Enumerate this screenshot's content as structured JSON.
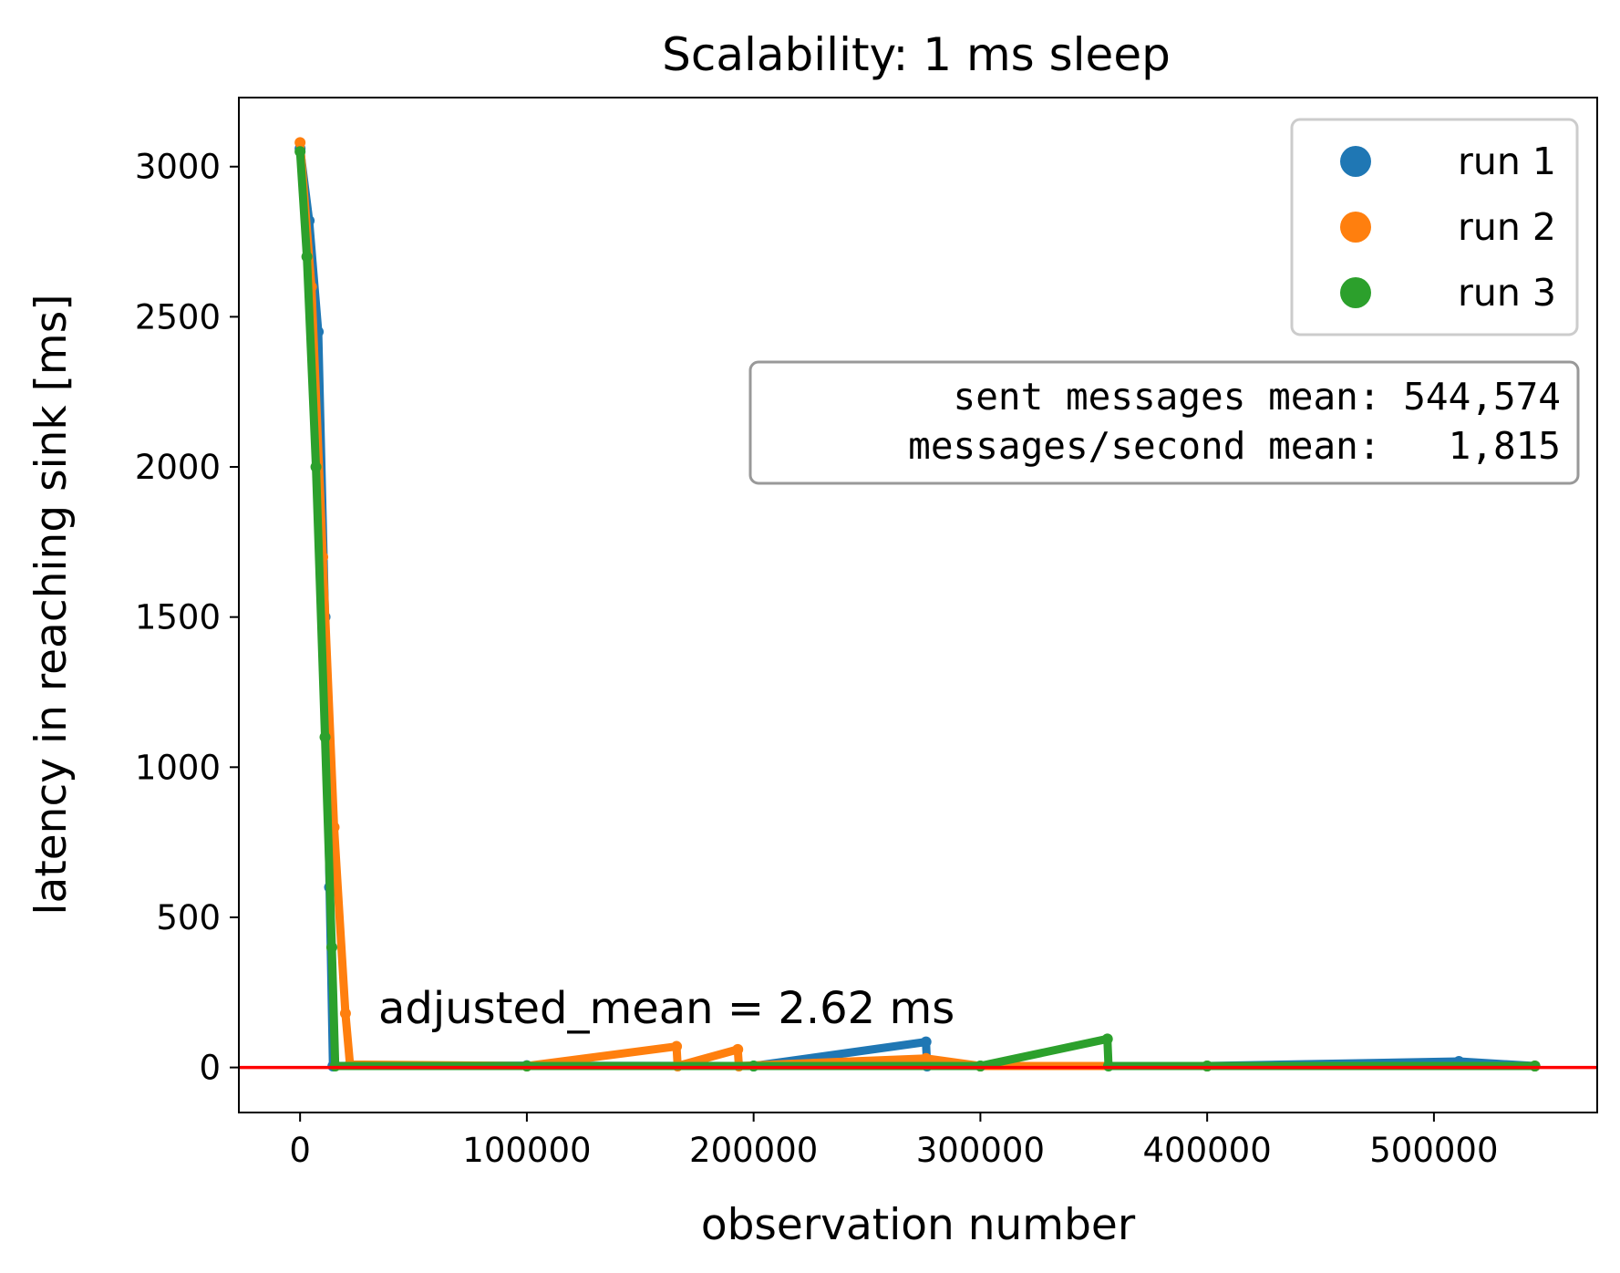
{
  "chart_data": {
    "type": "scatter",
    "title": "Scalability: 1 ms sleep",
    "xlabel": "observation number",
    "ylabel": "latency in reaching sink [ms]",
    "xlim": [
      -27000,
      572000
    ],
    "ylim": [
      -150,
      3230
    ],
    "x_ticks": [
      0,
      100000,
      200000,
      300000,
      400000,
      500000
    ],
    "x_tick_labels": [
      "0",
      "100000",
      "200000",
      "300000",
      "400000",
      "500000"
    ],
    "y_ticks": [
      0,
      500,
      1000,
      1500,
      2000,
      2500,
      3000
    ],
    "y_tick_labels": [
      "0",
      "500",
      "1000",
      "1500",
      "2000",
      "2500",
      "3000"
    ],
    "grid": false,
    "legend_position": "top-right",
    "series": [
      {
        "name": "run 1",
        "color": "#1f77b4",
        "points": [
          [
            0,
            3060
          ],
          [
            4000,
            2820
          ],
          [
            8000,
            2450
          ],
          [
            11000,
            1500
          ],
          [
            13000,
            600
          ],
          [
            14500,
            5
          ],
          [
            100000,
            6
          ],
          [
            200000,
            5
          ],
          [
            276000,
            85
          ],
          [
            276500,
            5
          ],
          [
            300000,
            5
          ],
          [
            400000,
            5
          ],
          [
            511000,
            20
          ],
          [
            544500,
            5
          ]
        ]
      },
      {
        "name": "run 2",
        "color": "#ff7f0e",
        "points": [
          [
            0,
            3080
          ],
          [
            5000,
            2600
          ],
          [
            10000,
            1700
          ],
          [
            15000,
            800
          ],
          [
            20000,
            180
          ],
          [
            22000,
            10
          ],
          [
            100000,
            5
          ],
          [
            166000,
            70
          ],
          [
            166500,
            5
          ],
          [
            193000,
            60
          ],
          [
            193500,
            5
          ],
          [
            276000,
            30
          ],
          [
            300000,
            5
          ],
          [
            400000,
            5
          ],
          [
            544500,
            5
          ]
        ]
      },
      {
        "name": "run 3",
        "color": "#2ca02c",
        "points": [
          [
            0,
            3050
          ],
          [
            3000,
            2700
          ],
          [
            7000,
            2000
          ],
          [
            11000,
            1100
          ],
          [
            14000,
            400
          ],
          [
            15500,
            5
          ],
          [
            100000,
            5
          ],
          [
            200000,
            5
          ],
          [
            300000,
            5
          ],
          [
            356000,
            95
          ],
          [
            356500,
            5
          ],
          [
            400000,
            5
          ],
          [
            544500,
            5
          ]
        ]
      }
    ],
    "hline": {
      "y": 0,
      "color": "#ff0000"
    },
    "annotation": {
      "text": "adjusted_mean = 2.62 ms",
      "x": 35000,
      "y": 115
    },
    "stats_box": {
      "line1": "  sent messages mean: 544,574",
      "line2": "messages/second mean:   1,815"
    }
  }
}
